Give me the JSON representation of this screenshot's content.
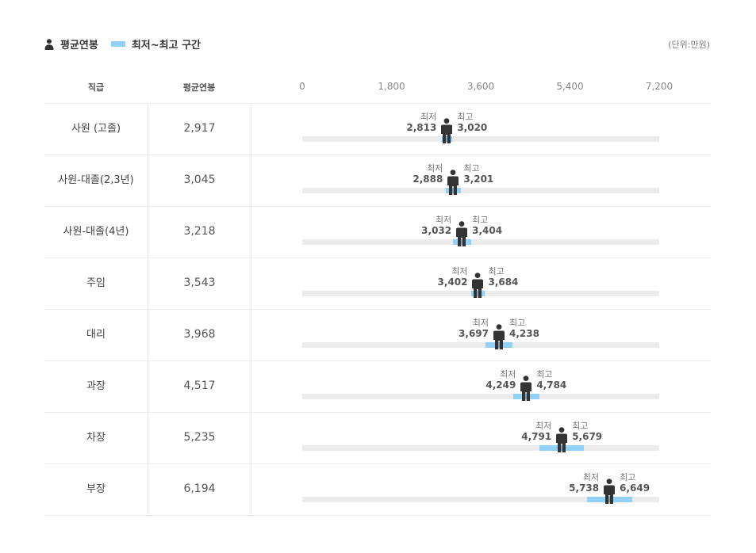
{
  "legend": {
    "avg_label": "평균연봉",
    "range_label": "최저~최고 구간"
  },
  "unit": "(단위:만원)",
  "header": {
    "rank": "직급",
    "avg": "평균연봉"
  },
  "colors": {
    "range": "#92d1f7",
    "track": "#ececec",
    "person": "#333333"
  },
  "chart_data": {
    "type": "range-bar",
    "xlim": [
      0,
      7200
    ],
    "ticks": [
      "0",
      "1,800",
      "3,600",
      "5,400",
      "7,200"
    ],
    "tick_values": [
      0,
      1800,
      3600,
      5400,
      7200
    ],
    "min_label": "최저",
    "max_label": "최고",
    "rows": [
      {
        "rank": "사원 (고졸)",
        "avg": 2917,
        "avg_text": "2,917",
        "min": 2813,
        "min_text": "2,813",
        "max": 3020,
        "max_text": "3,020"
      },
      {
        "rank": "사원-대졸(2,3년)",
        "avg": 3045,
        "avg_text": "3,045",
        "min": 2888,
        "min_text": "2,888",
        "max": 3201,
        "max_text": "3,201"
      },
      {
        "rank": "사원-대졸(4년)",
        "avg": 3218,
        "avg_text": "3,218",
        "min": 3032,
        "min_text": "3,032",
        "max": 3404,
        "max_text": "3,404"
      },
      {
        "rank": "주임",
        "avg": 3543,
        "avg_text": "3,543",
        "min": 3402,
        "min_text": "3,402",
        "max": 3684,
        "max_text": "3,684"
      },
      {
        "rank": "대리",
        "avg": 3968,
        "avg_text": "3,968",
        "min": 3697,
        "min_text": "3,697",
        "max": 4238,
        "max_text": "4,238"
      },
      {
        "rank": "과장",
        "avg": 4517,
        "avg_text": "4,517",
        "min": 4249,
        "min_text": "4,249",
        "max": 4784,
        "max_text": "4,784"
      },
      {
        "rank": "차장",
        "avg": 5235,
        "avg_text": "5,235",
        "min": 4791,
        "min_text": "4,791",
        "max": 5679,
        "max_text": "5,679"
      },
      {
        "rank": "부장",
        "avg": 6194,
        "avg_text": "6,194",
        "min": 5738,
        "min_text": "5,738",
        "max": 6649,
        "max_text": "6,649"
      }
    ]
  }
}
